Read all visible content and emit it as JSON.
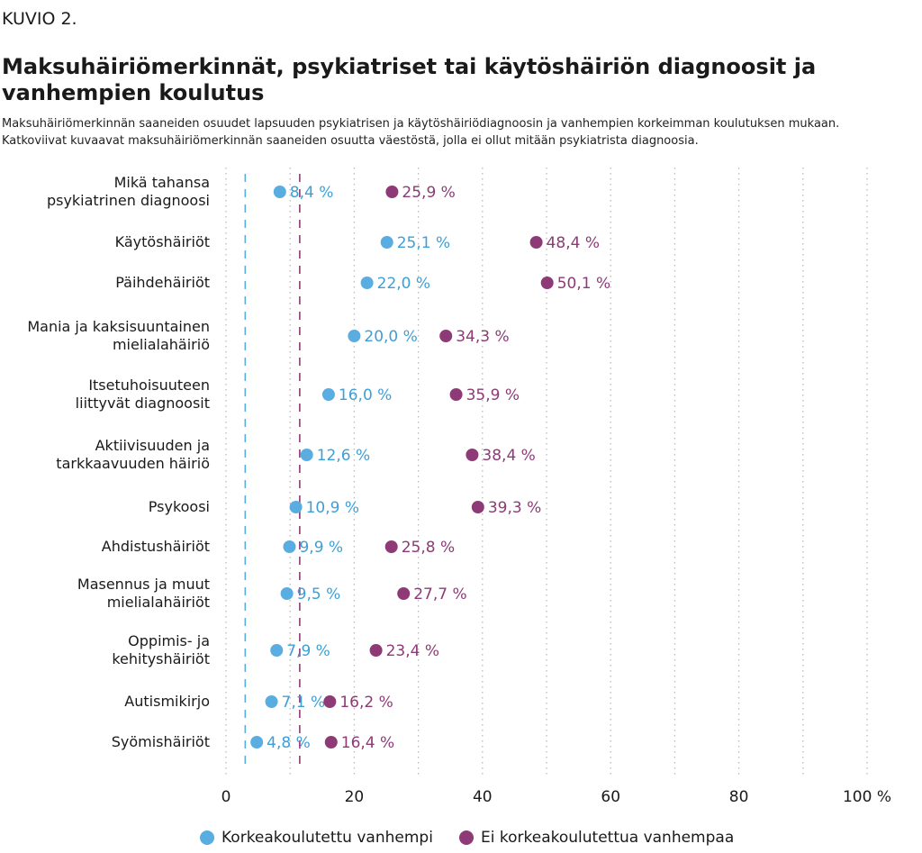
{
  "kuvio": "KUVIO 2.",
  "title": "Maksuhäiriömerkinnät, psykiatriset tai käytöshäiriön diagnoosit ja vanhempien koulutus",
  "subtitle_lines": [
    "Maksuhäiriömerkinnän saaneiden osuudet lapsuuden psykiatrisen ja käytöshäiriödiagnoosin ja vanhempien korkeimman koulutuksen mukaan.",
    "Katkoviivat kuvaavat maksuhäiriömerkinnän saaneiden osuutta väestöstä, jolla ei ollut mitään psykiatrista diagnoosia."
  ],
  "legend": {
    "series_a": "Korkeakoulutettu vanhempi",
    "series_b": "Ei korkeakoulutettua vanhempaa"
  },
  "colors": {
    "series_a": "#5aade0",
    "series_b": "#8e3a76",
    "label_a": "#3d9fd8",
    "label_b": "#8e3a76",
    "grid": "#b9b9b9"
  },
  "chart_data": {
    "type": "dot",
    "xlim": [
      0,
      100
    ],
    "x_ticks": [
      "0",
      "20",
      "40",
      "60",
      "80",
      "100 %"
    ],
    "x_tick_values": [
      0,
      20,
      40,
      60,
      80,
      100
    ],
    "grid": "dotted vertical every 10",
    "reference_lines": [
      {
        "series": "Korkeakoulutettu vanhempi",
        "value": 3,
        "style": "dashed"
      },
      {
        "series": "Ei korkeakoulutettua vanhempaa",
        "value": 11.5,
        "style": "dashed"
      }
    ],
    "categories": [
      [
        "Mikä tahansa",
        "psykiatrinen diagnoosi"
      ],
      [
        "Käytöshäiriöt"
      ],
      [
        "Päihdehäiriöt"
      ],
      [
        "Mania ja kaksisuuntainen",
        "mielialahäiriö"
      ],
      [
        "Itsetuhoisuuteen",
        "liittyvät diagnoosit"
      ],
      [
        "Aktiivisuuden ja",
        "tarkkaavuuden häiriö"
      ],
      [
        "Psykoosi"
      ],
      [
        "Ahdistushäiriöt"
      ],
      [
        "Masennus ja muut",
        "mielialahäiriöt"
      ],
      [
        "Oppimis- ja",
        "kehityshäiriöt"
      ],
      [
        "Autismikirjo"
      ],
      [
        "Syömishäiriöt"
      ]
    ],
    "series": [
      {
        "name": "Korkeakoulutettu vanhempi",
        "values": [
          8.4,
          25.1,
          22.0,
          20.0,
          16.0,
          12.6,
          10.9,
          9.9,
          9.5,
          7.9,
          7.1,
          4.8
        ],
        "labels": [
          "8,4 %",
          "25,1 %",
          "22,0 %",
          "20,0 %",
          "16,0 %",
          "12,6 %",
          "10,9 %",
          "9,9 %",
          "9,5 %",
          "7,9 %",
          "7,1 %",
          "4,8 %"
        ]
      },
      {
        "name": "Ei korkeakoulutettua vanhempaa",
        "values": [
          25.9,
          48.4,
          50.1,
          34.3,
          35.9,
          38.4,
          39.3,
          25.8,
          27.7,
          23.4,
          16.2,
          16.4
        ],
        "labels": [
          "25,9 %",
          "48,4 %",
          "50,1 %",
          "34,3 %",
          "35,9 %",
          "38,4 %",
          "39,3 %",
          "25,8 %",
          "27,7 %",
          "23,4 %",
          "16,2 %",
          "16,4 %"
        ]
      }
    ]
  }
}
